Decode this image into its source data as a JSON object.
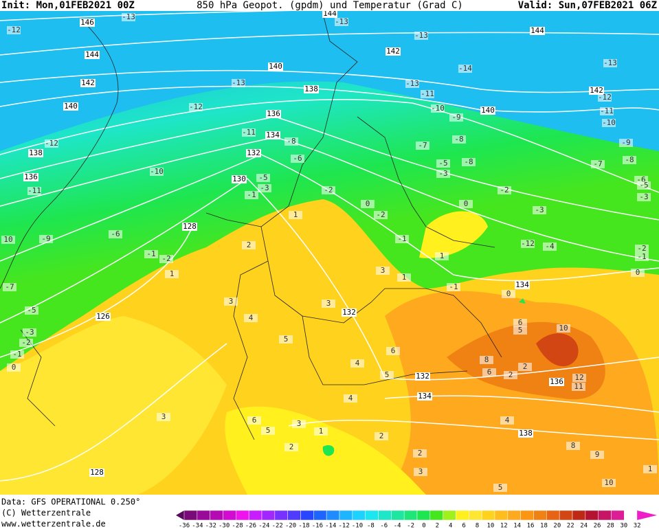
{
  "header": {
    "init": "Init: Mon,01FEB2021 00Z",
    "title": "850 hPa Geopot. (gpdm) und Temperatur (Grad C)",
    "valid": "Valid: Sun,07FEB2021 06Z"
  },
  "footer": {
    "lines": [
      "Data: GFS OPERATIONAL 0.250°",
      "(C) Wetterzentrale",
      "www.wetterzentrale.de"
    ]
  },
  "legend": {
    "labels": [
      -36,
      -34,
      -32,
      -30,
      -28,
      -26,
      -24,
      -22,
      -20,
      -18,
      -16,
      -14,
      -12,
      -10,
      -8,
      -6,
      -4,
      -2,
      0,
      2,
      4,
      6,
      8,
      10,
      12,
      14,
      16,
      18,
      20,
      22,
      24,
      26,
      28,
      30,
      32
    ],
    "colors": [
      "#5a0a5a",
      "#7a0a7a",
      "#9a0a9a",
      "#b40ab4",
      "#d20ad2",
      "#ee14ee",
      "#c81eff",
      "#a028ff",
      "#7832ff",
      "#503cff",
      "#2846ff",
      "#1e64ff",
      "#1e8cff",
      "#1eb4ff",
      "#1ed2ff",
      "#1ee6f0",
      "#1ee6c8",
      "#1ee6a0",
      "#1ee678",
      "#1ee650",
      "#46e61e",
      "#a0f01e",
      "#fff01e",
      "#ffe632",
      "#ffd21e",
      "#ffbe1e",
      "#ffaa1e",
      "#fa9614",
      "#f08214",
      "#e66414",
      "#d24614",
      "#be2814",
      "#b41432",
      "#c81464",
      "#dc1e96",
      "#f01ec8"
    ]
  },
  "geopotential_labels": [
    146,
    144,
    142,
    140,
    138,
    136,
    134,
    132,
    130,
    128,
    126,
    128,
    144,
    142,
    140,
    138,
    136,
    144,
    142,
    140,
    132,
    134,
    132,
    134,
    136,
    138
  ],
  "temperature_labels": [
    -12,
    -13,
    -13,
    -13,
    -14,
    -13,
    -13,
    -12,
    -12,
    -11,
    -10,
    -11,
    -8,
    -6,
    -5,
    -3,
    -1,
    -2,
    0,
    -2,
    1,
    2,
    -9,
    -6,
    -1,
    -2,
    1,
    3,
    4,
    5,
    3,
    -7,
    -5,
    -3,
    -2,
    -1,
    0,
    10,
    -13,
    -11,
    -10,
    -9,
    -7,
    -8,
    -5,
    -3,
    -8,
    0,
    -2,
    -1,
    1,
    -3,
    -12,
    -4,
    1,
    3,
    -1,
    0,
    5,
    6,
    10,
    8,
    6,
    2,
    2,
    12,
    11,
    6,
    4,
    5,
    4,
    3,
    1,
    2,
    5,
    6,
    3,
    2,
    3,
    4,
    8,
    9,
    10,
    5,
    2,
    0,
    -2,
    -1,
    -11,
    -10,
    -9,
    -8,
    -7,
    -6,
    -5,
    -3,
    1,
    -12
  ]
}
